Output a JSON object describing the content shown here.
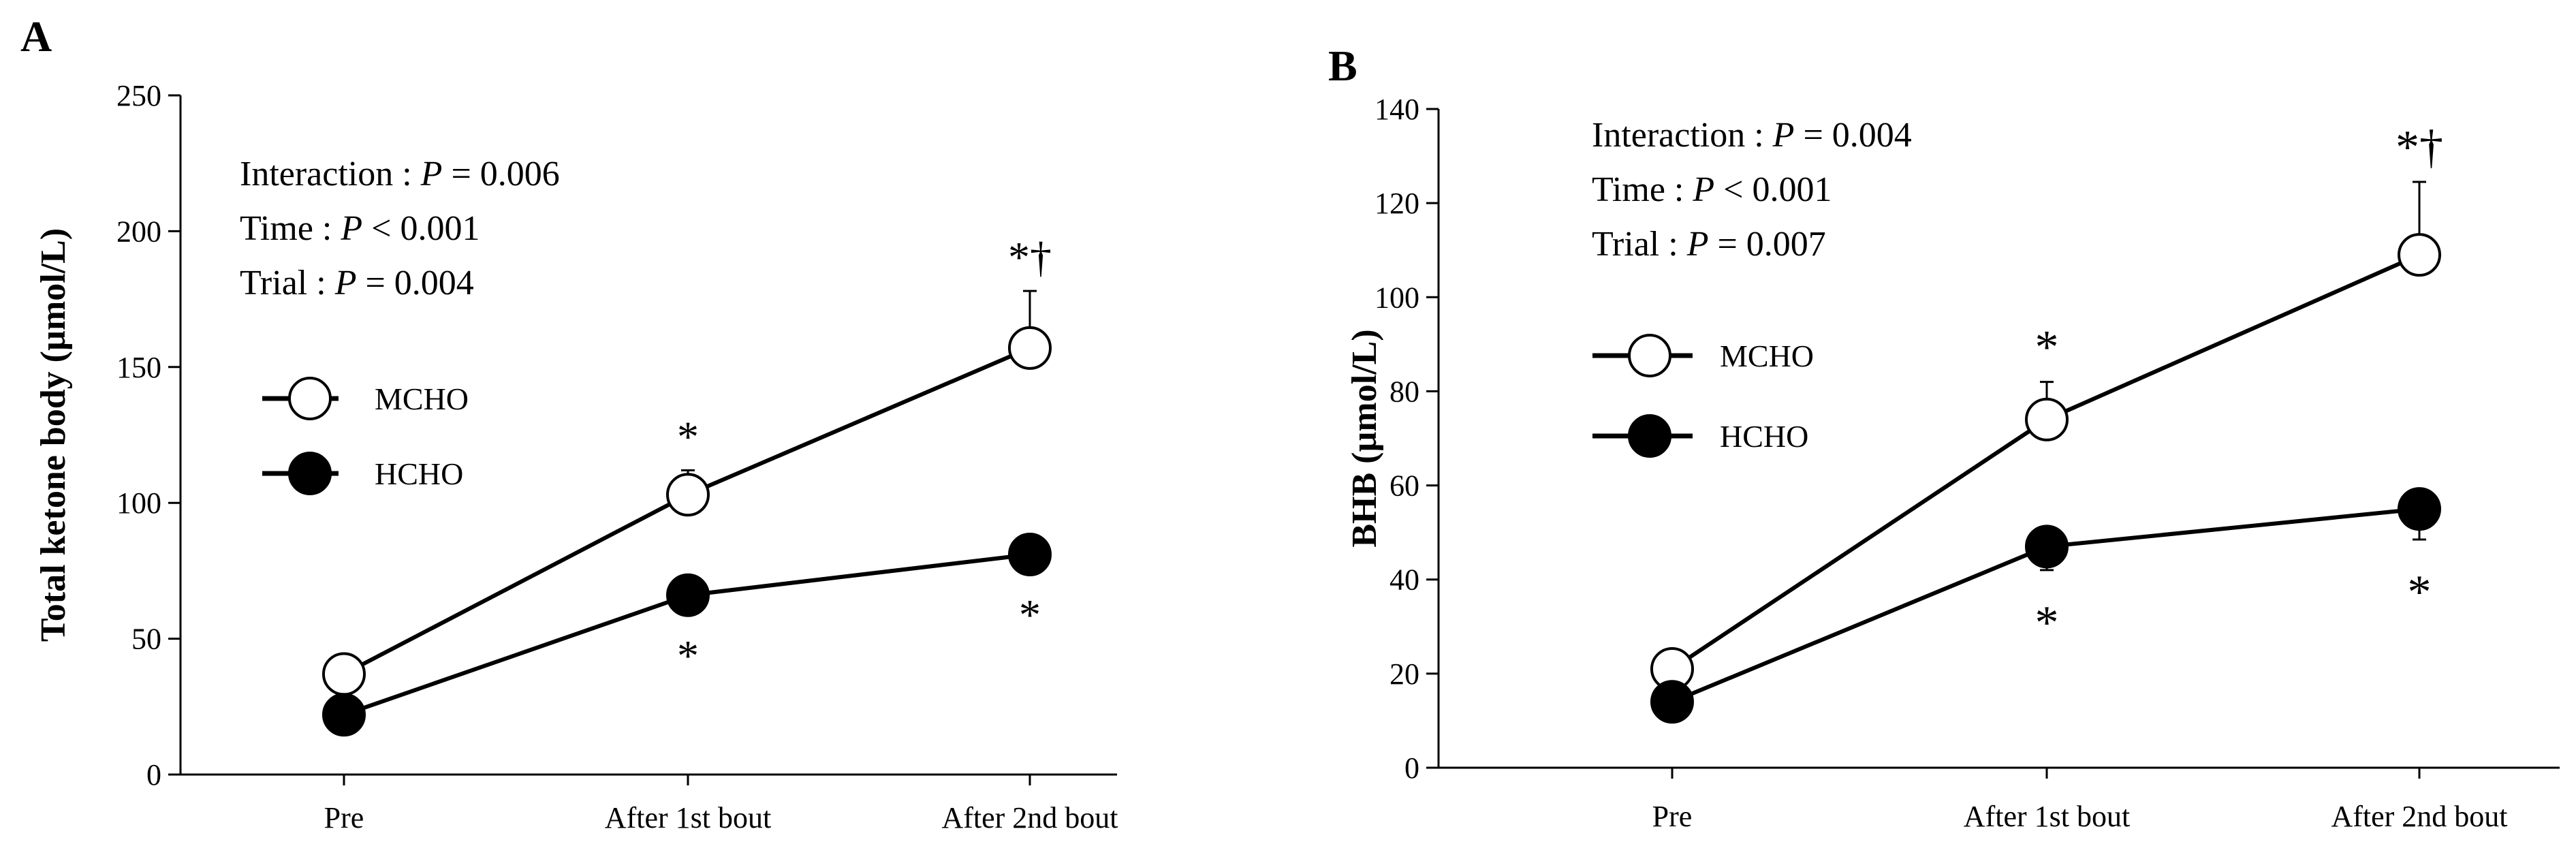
{
  "chart_data": [
    {
      "type": "line",
      "panel_label": "A",
      "title": "",
      "xlabel": "",
      "ylabel": "Total ketone body (µmol/L)",
      "ylim": [
        0,
        250
      ],
      "yticks": [
        0,
        50,
        100,
        150,
        200,
        250
      ],
      "categories": [
        "Pre",
        "After 1st bout",
        "After 2nd bout"
      ],
      "grid": false,
      "legend_position": "upper-left",
      "stats": {
        "interaction": {
          "label": "Interaction",
          "p_op": "=",
          "p": "0.006"
        },
        "time": {
          "label": "Time",
          "p_op": "<",
          "p": "0.001"
        },
        "trial": {
          "label": "Trial",
          "p_op": "=",
          "p": "0.004"
        }
      },
      "series": [
        {
          "name": "MCHO",
          "marker": "open-circle",
          "values": [
            37,
            103,
            157
          ],
          "errors": [
            2,
            9,
            21
          ],
          "annotations": [
            "",
            "*",
            "*†"
          ],
          "annotation_side": "above"
        },
        {
          "name": "HCHO",
          "marker": "filled-circle",
          "values": [
            22,
            66,
            81
          ],
          "errors": [
            2,
            3,
            3
          ],
          "annotations": [
            "",
            "*",
            "*"
          ],
          "annotation_side": "below"
        }
      ]
    },
    {
      "type": "line",
      "panel_label": "B",
      "title": "",
      "xlabel": "",
      "ylabel": "BHB (µmol/L)",
      "ylim": [
        0,
        140
      ],
      "yticks": [
        0,
        20,
        40,
        60,
        80,
        100,
        120,
        140
      ],
      "categories": [
        "Pre",
        "After 1st bout",
        "After 2nd bout"
      ],
      "grid": false,
      "legend_position": "upper-left",
      "stats": {
        "interaction": {
          "label": "Interaction",
          "p_op": "=",
          "p": "0.004"
        },
        "time": {
          "label": "Time",
          "p_op": "<",
          "p": "0.001"
        },
        "trial": {
          "label": "Trial",
          "p_op": "=",
          "p": "0.007"
        }
      },
      "series": [
        {
          "name": "MCHO",
          "marker": "open-circle",
          "values": [
            21,
            74,
            109
          ],
          "errors": [
            1,
            8,
            15.5
          ],
          "annotations": [
            "",
            "*",
            "*†"
          ],
          "annotation_side": "above"
        },
        {
          "name": "HCHO",
          "marker": "filled-circle",
          "values": [
            14,
            47,
            55
          ],
          "errors": [
            1,
            5,
            6.5
          ],
          "annotations": [
            "",
            "*",
            "*"
          ],
          "annotation_side": "below"
        }
      ]
    }
  ]
}
